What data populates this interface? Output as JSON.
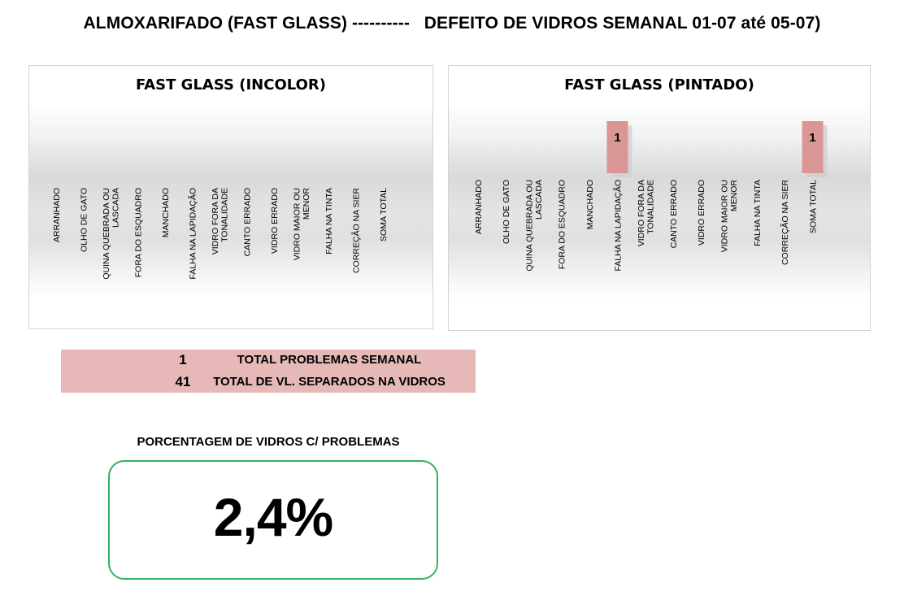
{
  "header": {
    "title": "ALMOXARIFADO (FAST GLASS) ----------   DEFEITO DE VIDROS SEMANAL 01-07 até 05-07)"
  },
  "chart_data": [
    {
      "type": "bar",
      "title": "FAST GLASS (INCOLOR)",
      "categories": [
        [
          "ARRANHADO"
        ],
        [
          "OLHO DE GATO"
        ],
        [
          "QUINA QUEBRADA OU",
          "LASCADA"
        ],
        [
          "FORA DO ESQUADRO"
        ],
        [
          "MANCHADO"
        ],
        [
          "FALHA  NA LAPIDAÇÃO"
        ],
        [
          "VIDRO FORA DA",
          "TONALIDADE"
        ],
        [
          "CANTO ERRADO"
        ],
        [
          "VIDRO ERRADO"
        ],
        [
          "VIDRO MAIOR OU",
          "MENOR"
        ],
        [
          "FALHA NA TINTA"
        ],
        [
          "CORREÇÃO NA SIER"
        ],
        [
          "SOMA TOTAL"
        ]
      ],
      "values": [
        null,
        null,
        null,
        null,
        null,
        null,
        null,
        null,
        null,
        null,
        null,
        null,
        null
      ],
      "bar_color": "#d99694",
      "grid": false,
      "legend": "none"
    },
    {
      "type": "bar",
      "title": "FAST GLASS (PINTADO)",
      "categories": [
        [
          "ARRANHADO"
        ],
        [
          "OLHO DE GATO"
        ],
        [
          "QUINA QUEBRADA OU",
          "LASCADA"
        ],
        [
          "FORA DO ESQUADRO"
        ],
        [
          "MANCHADO"
        ],
        [
          "FALHA  NA LAPIDAÇÃO"
        ],
        [
          "VIDRO FORA DA",
          "TONALIDADE"
        ],
        [
          "CANTO ERRADO"
        ],
        [
          "VIDRO ERRADO"
        ],
        [
          "VIDRO MAIOR OU",
          "MENOR"
        ],
        [
          "FALHA NA TINTA"
        ],
        [
          "CORREÇÃO NA SIER"
        ],
        [
          "SOMA TOTAL"
        ]
      ],
      "values": [
        null,
        null,
        null,
        null,
        null,
        1,
        null,
        null,
        null,
        null,
        null,
        null,
        1
      ],
      "data_labels": [
        "",
        "",
        "",
        "",
        "",
        "1",
        "",
        "",
        "",
        "",
        "",
        "",
        "1"
      ],
      "bar_color": "#d99694",
      "grid": false,
      "legend": "none"
    }
  ],
  "totals": [
    {
      "value": "1",
      "label": "TOTAL PROBLEMAS SEMANAL"
    },
    {
      "value": "41",
      "label": "TOTAL DE VL. SEPARADOS NA VIDROS"
    }
  ],
  "percentage": {
    "label": "PORCENTAGEM DE VIDROS C/ PROBLEMAS",
    "value": "2,4%"
  }
}
